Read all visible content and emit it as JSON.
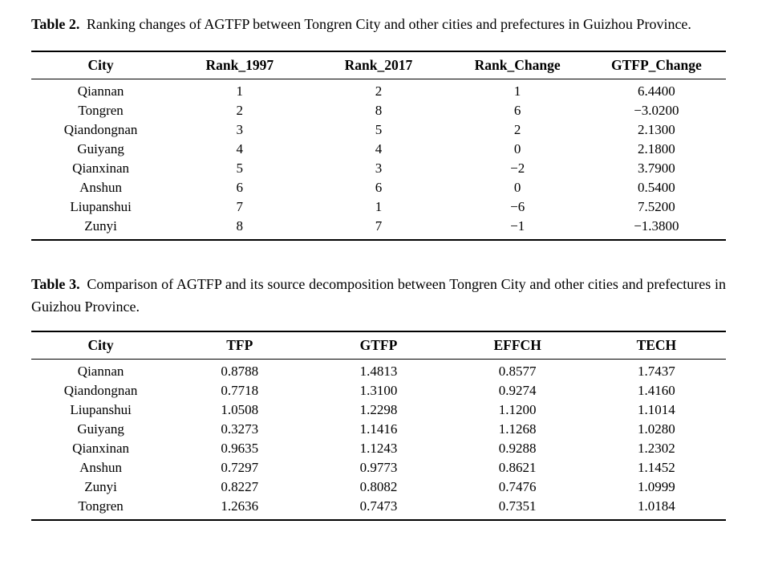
{
  "page": {
    "background_color": "#ffffff",
    "text_color": "#000000"
  },
  "table2": {
    "caption_label": "Table 2.",
    "caption_text": "Ranking changes of AGTFP between Tongren City and other cities and prefectures in Guizhou Province.",
    "columns": [
      "City",
      "Rank_1997",
      "Rank_2017",
      "Rank_Change",
      "GTFP_Change"
    ],
    "rows": [
      [
        "Qiannan",
        "1",
        "2",
        "1",
        "6.4400"
      ],
      [
        "Tongren",
        "2",
        "8",
        "6",
        "−3.0200"
      ],
      [
        "Qiandongnan",
        "3",
        "5",
        "2",
        "2.1300"
      ],
      [
        "Guiyang",
        "4",
        "4",
        "0",
        "2.1800"
      ],
      [
        "Qianxinan",
        "5",
        "3",
        "−2",
        "3.7900"
      ],
      [
        "Anshun",
        "6",
        "6",
        "0",
        "0.5400"
      ],
      [
        "Liupanshui",
        "7",
        "1",
        "−6",
        "7.5200"
      ],
      [
        "Zunyi",
        "8",
        "7",
        "−1",
        "−1.3800"
      ]
    ]
  },
  "table3": {
    "caption_label": "Table 3.",
    "caption_text": "Comparison of AGTFP and its source decomposition between Tongren City and other cities and prefectures in Guizhou Province.",
    "columns": [
      "City",
      "TFP",
      "GTFP",
      "EFFCH",
      "TECH"
    ],
    "rows": [
      [
        "Qiannan",
        "0.8788",
        "1.4813",
        "0.8577",
        "1.7437"
      ],
      [
        "Qiandongnan",
        "0.7718",
        "1.3100",
        "0.9274",
        "1.4160"
      ],
      [
        "Liupanshui",
        "1.0508",
        "1.2298",
        "1.1200",
        "1.1014"
      ],
      [
        "Guiyang",
        "0.3273",
        "1.1416",
        "1.1268",
        "1.0280"
      ],
      [
        "Qianxinan",
        "0.9635",
        "1.1243",
        "0.9288",
        "1.2302"
      ],
      [
        "Anshun",
        "0.7297",
        "0.9773",
        "0.8621",
        "1.1452"
      ],
      [
        "Zunyi",
        "0.8227",
        "0.8082",
        "0.7476",
        "1.0999"
      ],
      [
        "Tongren",
        "1.2636",
        "0.7473",
        "0.7351",
        "1.0184"
      ]
    ]
  }
}
